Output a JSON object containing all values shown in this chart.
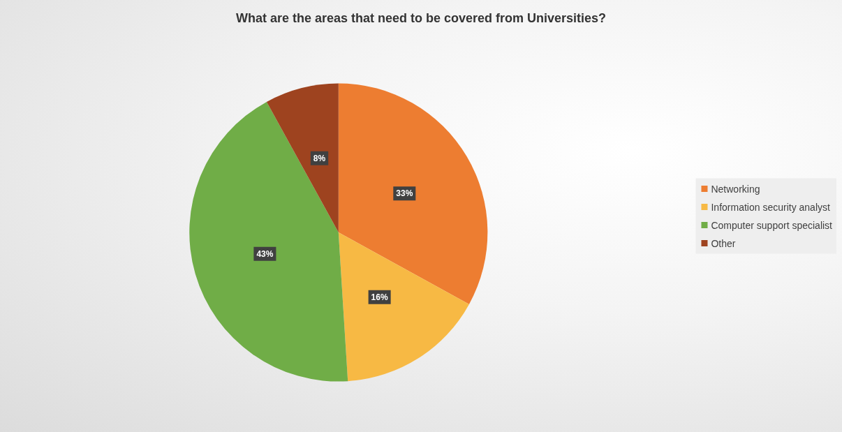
{
  "chart_data": {
    "type": "pie",
    "title": "What are the areas that need to be covered from Universities?",
    "categories": [
      "Networking",
      "Information security analyst",
      "Computer support specialist",
      "Other"
    ],
    "values": [
      33,
      16,
      43,
      8
    ],
    "colors": [
      "#ed7d31",
      "#f7b944",
      "#70ad47",
      "#9e431f"
    ],
    "value_labels": [
      "33%",
      "16%",
      "43%",
      "8%"
    ],
    "legend": "right"
  }
}
